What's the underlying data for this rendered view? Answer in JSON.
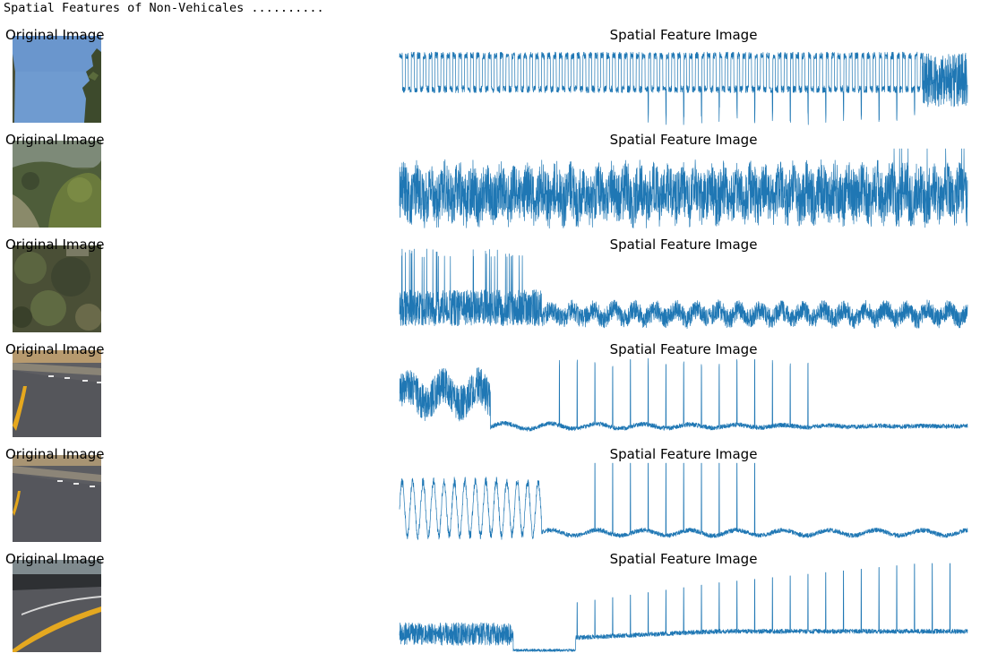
{
  "page": {
    "header": "Spatial Features of Non-Vehicales ..........",
    "line_color": "#1f77b4"
  },
  "rows": [
    {
      "original_title": "Original Image",
      "spatial_title": "Spatial Feature Image",
      "thumbnail": "sky-and-tree"
    },
    {
      "original_title": "Original Image",
      "spatial_title": "Spatial Feature Image",
      "thumbnail": "trees-and-hill"
    },
    {
      "original_title": "Original Image",
      "spatial_title": "Spatial Feature Image",
      "thumbnail": "dense-foliage"
    },
    {
      "original_title": "Original Image",
      "spatial_title": "Spatial Feature Image",
      "thumbnail": "road-curve-yellow-line"
    },
    {
      "original_title": "Original Image",
      "spatial_title": "Spatial Feature Image",
      "thumbnail": "road-curve-yellow-line"
    },
    {
      "original_title": "Original Image",
      "spatial_title": "Spatial Feature Image",
      "thumbnail": "road-with-barrier"
    }
  ],
  "chart_data": [
    {
      "type": "line",
      "title": "Spatial Feature Image",
      "xlabel": "",
      "ylabel": "",
      "axis": "off",
      "points": 3072,
      "pattern": "periodic-dense-then-spiky",
      "ylim": [
        0,
        1
      ]
    },
    {
      "type": "line",
      "title": "Spatial Feature Image",
      "xlabel": "",
      "ylabel": "",
      "axis": "off",
      "points": 3072,
      "pattern": "noisy-uniform",
      "ylim": [
        0,
        1
      ]
    },
    {
      "type": "line",
      "title": "Spatial Feature Image",
      "xlabel": "",
      "ylabel": "",
      "axis": "off",
      "points": 3072,
      "pattern": "spiky-then-damped",
      "ylim": [
        0,
        1
      ]
    },
    {
      "type": "line",
      "title": "Spatial Feature Image",
      "xlabel": "",
      "ylabel": "",
      "axis": "off",
      "points": 3072,
      "pattern": "burst-then-periodic-spikes",
      "ylim": [
        0,
        1
      ]
    },
    {
      "type": "line",
      "title": "Spatial Feature Image",
      "xlabel": "",
      "ylabel": "",
      "axis": "off",
      "points": 3072,
      "pattern": "oscillation-then-periodic-spikes",
      "ylim": [
        0,
        1
      ]
    },
    {
      "type": "line",
      "title": "Spatial Feature Image",
      "xlabel": "",
      "ylabel": "",
      "axis": "off",
      "points": 3072,
      "pattern": "dip-then-rising-spikes",
      "ylim": [
        0,
        1
      ]
    }
  ]
}
